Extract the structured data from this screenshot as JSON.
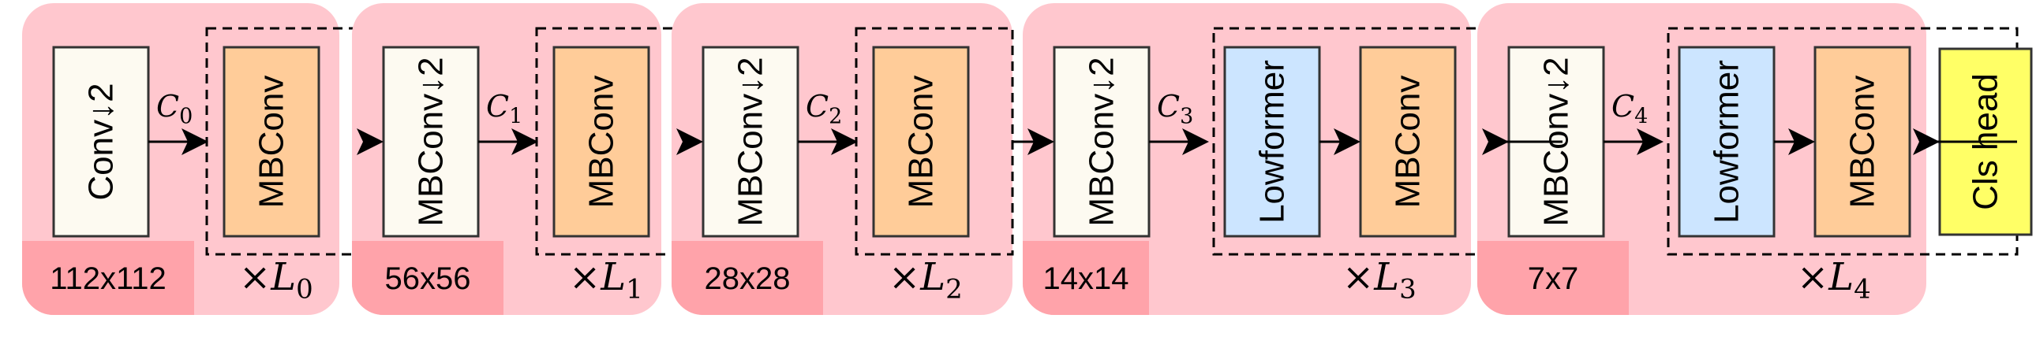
{
  "colors": {
    "stage_bg": "#ffc7ce",
    "resolution_bg": "#ffa3aa",
    "conv_block": "#fdfaf1",
    "mbconv_block": "#ffcc99",
    "lowformer_block": "#cce5ff",
    "head_block": "#ffff66",
    "stroke": "#333333"
  },
  "stages": [
    {
      "stem_label": "Conv↓2",
      "channel_label": "C",
      "channel_sub": "0",
      "repeat_blocks": [
        "MBConv"
      ],
      "repeat_prefix": "×",
      "repeat_label": "L",
      "repeat_sub": "0",
      "resolution": "112x112"
    },
    {
      "stem_label": "MBConv↓2",
      "channel_label": "C",
      "channel_sub": "1",
      "repeat_blocks": [
        "MBConv"
      ],
      "repeat_prefix": "×",
      "repeat_label": "L",
      "repeat_sub": "1",
      "resolution": "56x56"
    },
    {
      "stem_label": "MBConv↓2",
      "channel_label": "C",
      "channel_sub": "2",
      "repeat_blocks": [
        "MBConv"
      ],
      "repeat_prefix": "×",
      "repeat_label": "L",
      "repeat_sub": "2",
      "resolution": "28x28"
    },
    {
      "stem_label": "MBConv↓2",
      "channel_label": "C",
      "channel_sub": "3",
      "repeat_blocks": [
        "Lowformer",
        "MBConv"
      ],
      "repeat_prefix": "×",
      "repeat_label": "L",
      "repeat_sub": "3",
      "resolution": "14x14"
    },
    {
      "stem_label": "MBConv↓2",
      "channel_label": "C",
      "channel_sub": "4",
      "repeat_blocks": [
        "Lowformer",
        "MBConv"
      ],
      "repeat_prefix": "×",
      "repeat_label": "L",
      "repeat_sub": "4",
      "resolution": "7x7"
    }
  ],
  "head": {
    "label": "Cls head"
  }
}
